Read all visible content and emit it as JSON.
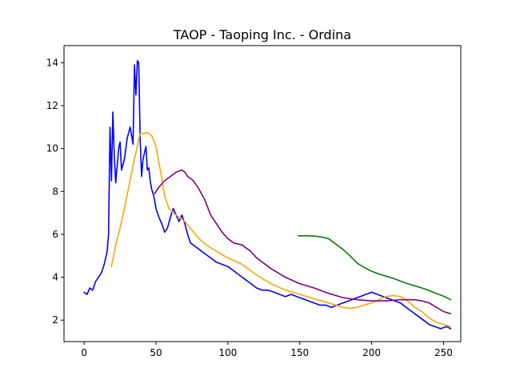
{
  "chart_data": {
    "type": "line",
    "title": "TAOP - Taoping Inc. - Ordina",
    "xlabel": "",
    "ylabel": "",
    "xlim": [
      -14,
      262
    ],
    "ylim": [
      1.0,
      14.8
    ],
    "xticks": [
      0,
      50,
      100,
      150,
      200,
      250
    ],
    "yticks": [
      2,
      4,
      6,
      8,
      10,
      12,
      14
    ],
    "grid": false,
    "series": [
      {
        "color": "#0000ff",
        "x": [
          0,
          2,
          4,
          6,
          8,
          10,
          12,
          14,
          16,
          17,
          18,
          19,
          20,
          21,
          22,
          24,
          25,
          26,
          28,
          30,
          32,
          34,
          35,
          36,
          37,
          38,
          39,
          40,
          41,
          42,
          43,
          44,
          45,
          46,
          47,
          48,
          49,
          50,
          52,
          54,
          56,
          58,
          60,
          62,
          64,
          66,
          68,
          70,
          72,
          74,
          76,
          78,
          80,
          84,
          88,
          92,
          96,
          100,
          104,
          108,
          112,
          116,
          120,
          124,
          128,
          132,
          136,
          140,
          144,
          148,
          152,
          156,
          160,
          164,
          168,
          172,
          176,
          180,
          184,
          188,
          192,
          196,
          200,
          204,
          208,
          212,
          216,
          220,
          224,
          228,
          232,
          236,
          240,
          244,
          248,
          252,
          255
        ],
        "y": [
          3.3,
          3.2,
          3.5,
          3.4,
          3.8,
          4.0,
          4.2,
          4.6,
          5.2,
          6.0,
          11.0,
          8.5,
          11.7,
          9.6,
          8.4,
          10.0,
          10.3,
          9.0,
          9.5,
          10.5,
          11.0,
          10.2,
          13.9,
          12.5,
          14.1,
          14.0,
          10.5,
          8.7,
          9.5,
          9.8,
          10.1,
          9.0,
          9.1,
          8.5,
          8.1,
          7.9,
          7.6,
          7.2,
          6.8,
          6.5,
          6.1,
          6.3,
          6.8,
          7.2,
          6.9,
          6.6,
          6.9,
          6.5,
          6.0,
          5.6,
          5.5,
          5.4,
          5.3,
          5.1,
          4.9,
          4.7,
          4.6,
          4.5,
          4.3,
          4.1,
          3.9,
          3.7,
          3.5,
          3.4,
          3.4,
          3.3,
          3.2,
          3.1,
          3.2,
          3.1,
          3.0,
          2.9,
          2.8,
          2.7,
          2.7,
          2.6,
          2.7,
          2.8,
          2.9,
          3.0,
          3.1,
          3.2,
          3.3,
          3.2,
          3.1,
          3.0,
          2.9,
          2.8,
          2.6,
          2.4,
          2.2,
          2.0,
          1.8,
          1.7,
          1.6,
          1.7,
          1.6
        ]
      },
      {
        "color": "#ffa500",
        "x": [
          19,
          22,
          25,
          28,
          31,
          34,
          37,
          39,
          41,
          44,
          47,
          50,
          53,
          56,
          59,
          62,
          66,
          70,
          75,
          80,
          85,
          90,
          95,
          100,
          110,
          120,
          130,
          140,
          150,
          160,
          170,
          180,
          185,
          190,
          200,
          210,
          215,
          220,
          225,
          230,
          235,
          240,
          245,
          250,
          255
        ],
        "y": [
          4.5,
          5.5,
          6.3,
          7.2,
          8.2,
          9.2,
          10.1,
          10.7,
          10.7,
          10.75,
          10.6,
          10.1,
          9.0,
          7.8,
          7.2,
          7.0,
          6.8,
          6.6,
          6.2,
          5.8,
          5.5,
          5.3,
          5.1,
          4.9,
          4.6,
          4.1,
          3.7,
          3.4,
          3.2,
          3.0,
          2.8,
          2.6,
          2.55,
          2.6,
          2.8,
          3.1,
          3.15,
          3.1,
          2.9,
          2.6,
          2.4,
          2.1,
          1.9,
          1.8,
          1.7
        ]
      },
      {
        "color": "#800080",
        "x": [
          49,
          52,
          56,
          60,
          64,
          68,
          70,
          72,
          76,
          80,
          84,
          88,
          92,
          96,
          100,
          104,
          110,
          116,
          120,
          130,
          140,
          150,
          160,
          170,
          180,
          190,
          200,
          210,
          220,
          230,
          235,
          240,
          245,
          250,
          255
        ],
        "y": [
          7.9,
          8.2,
          8.5,
          8.7,
          8.9,
          9.0,
          8.9,
          8.7,
          8.5,
          8.1,
          7.6,
          6.9,
          6.5,
          6.1,
          5.8,
          5.6,
          5.5,
          5.2,
          4.9,
          4.4,
          4.0,
          3.7,
          3.5,
          3.25,
          3.05,
          2.95,
          2.9,
          2.9,
          2.95,
          2.95,
          2.9,
          2.8,
          2.6,
          2.4,
          2.3
        ]
      },
      {
        "color": "#008000",
        "x": [
          149,
          155,
          160,
          165,
          170,
          175,
          180,
          185,
          190,
          195,
          200,
          205,
          210,
          215,
          220,
          225,
          230,
          235,
          240,
          245,
          250,
          255
        ],
        "y": [
          5.93,
          5.93,
          5.92,
          5.88,
          5.8,
          5.55,
          5.3,
          5.0,
          4.65,
          4.45,
          4.28,
          4.15,
          4.05,
          3.95,
          3.82,
          3.7,
          3.6,
          3.5,
          3.38,
          3.25,
          3.12,
          2.95
        ]
      }
    ]
  }
}
